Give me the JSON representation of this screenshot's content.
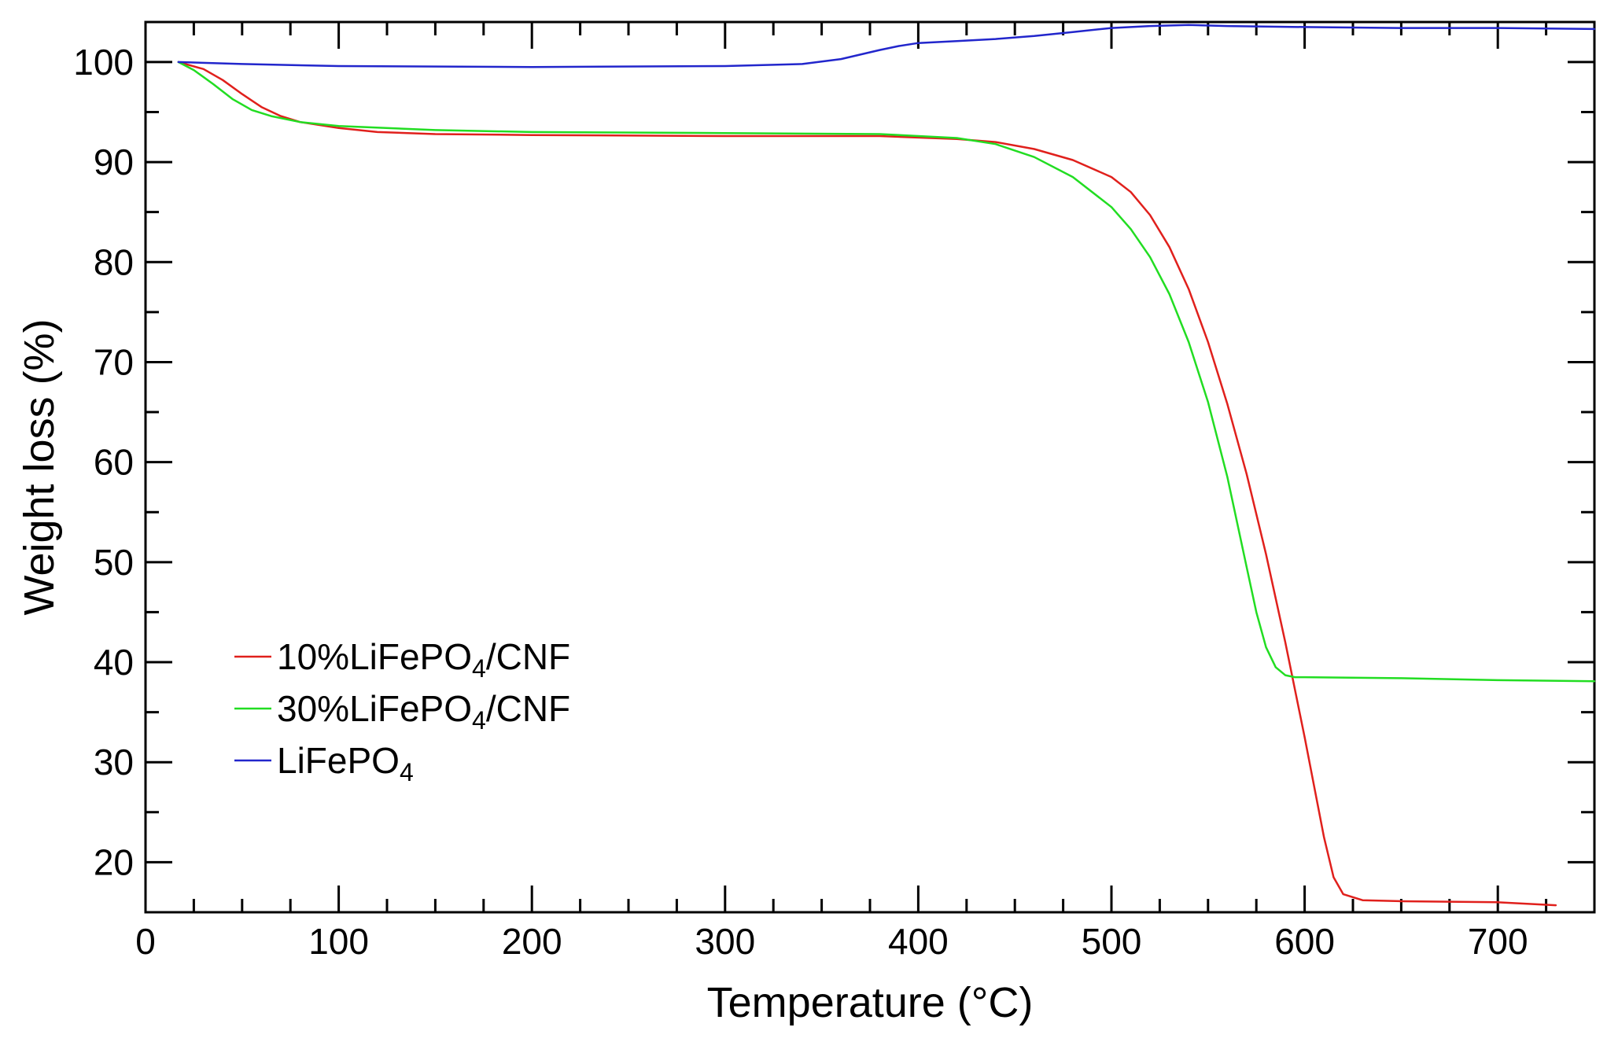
{
  "chart_data": {
    "type": "line",
    "xlabel": "Temperature (°C)",
    "ylabel": "Weight loss (%)",
    "xlim": [
      0,
      750
    ],
    "ylim": [
      15,
      104
    ],
    "xticks": [
      0,
      100,
      200,
      300,
      400,
      500,
      600,
      700
    ],
    "yticks": [
      20,
      30,
      40,
      50,
      60,
      70,
      80,
      90,
      100
    ],
    "grid": false,
    "legend_position": "bottom-left",
    "series": [
      {
        "name": "10%LiFePO",
        "name_sub": "4",
        "name_suffix": "/CNF",
        "color": "#e0201c",
        "x": [
          17,
          30,
          40,
          50,
          60,
          70,
          80,
          100,
          120,
          150,
          200,
          300,
          380,
          420,
          440,
          460,
          480,
          500,
          510,
          520,
          530,
          540,
          550,
          560,
          570,
          580,
          590,
          600,
          610,
          615,
          620,
          630,
          650,
          700,
          730
        ],
        "y": [
          100,
          99.3,
          98.2,
          96.8,
          95.5,
          94.6,
          94.0,
          93.4,
          93.0,
          92.8,
          92.7,
          92.6,
          92.6,
          92.3,
          92.0,
          91.3,
          90.2,
          88.5,
          87.0,
          84.7,
          81.5,
          77.3,
          72.0,
          65.8,
          58.8,
          50.8,
          42.0,
          32.5,
          22.5,
          18.5,
          16.8,
          16.2,
          16.1,
          16.0,
          15.7
        ]
      },
      {
        "name": "30%LiFePO",
        "name_sub": "4",
        "name_suffix": "/CNF",
        "color": "#22dd22",
        "x": [
          17,
          25,
          35,
          45,
          55,
          65,
          80,
          100,
          150,
          200,
          300,
          380,
          420,
          440,
          460,
          480,
          500,
          510,
          520,
          530,
          540,
          550,
          560,
          570,
          575,
          580,
          585,
          590,
          595,
          600,
          650,
          700,
          750
        ],
        "y": [
          100,
          99.2,
          97.8,
          96.3,
          95.2,
          94.6,
          94.0,
          93.6,
          93.2,
          93.0,
          92.9,
          92.8,
          92.4,
          91.8,
          90.5,
          88.5,
          85.5,
          83.3,
          80.5,
          76.8,
          72.0,
          66.0,
          58.5,
          49.5,
          45.0,
          41.5,
          39.5,
          38.7,
          38.5,
          38.5,
          38.4,
          38.2,
          38.1
        ]
      },
      {
        "name": "LiFePO",
        "name_sub": "4",
        "name_suffix": "",
        "color": "#2226cc",
        "x": [
          17,
          50,
          100,
          200,
          300,
          340,
          360,
          380,
          390,
          400,
          420,
          440,
          460,
          480,
          500,
          520,
          540,
          560,
          600,
          650,
          700,
          750
        ],
        "y": [
          100,
          99.8,
          99.6,
          99.5,
          99.6,
          99.8,
          100.3,
          101.2,
          101.6,
          101.9,
          102.1,
          102.3,
          102.6,
          103.0,
          103.4,
          103.6,
          103.7,
          103.6,
          103.5,
          103.4,
          103.4,
          103.3
        ]
      }
    ]
  }
}
